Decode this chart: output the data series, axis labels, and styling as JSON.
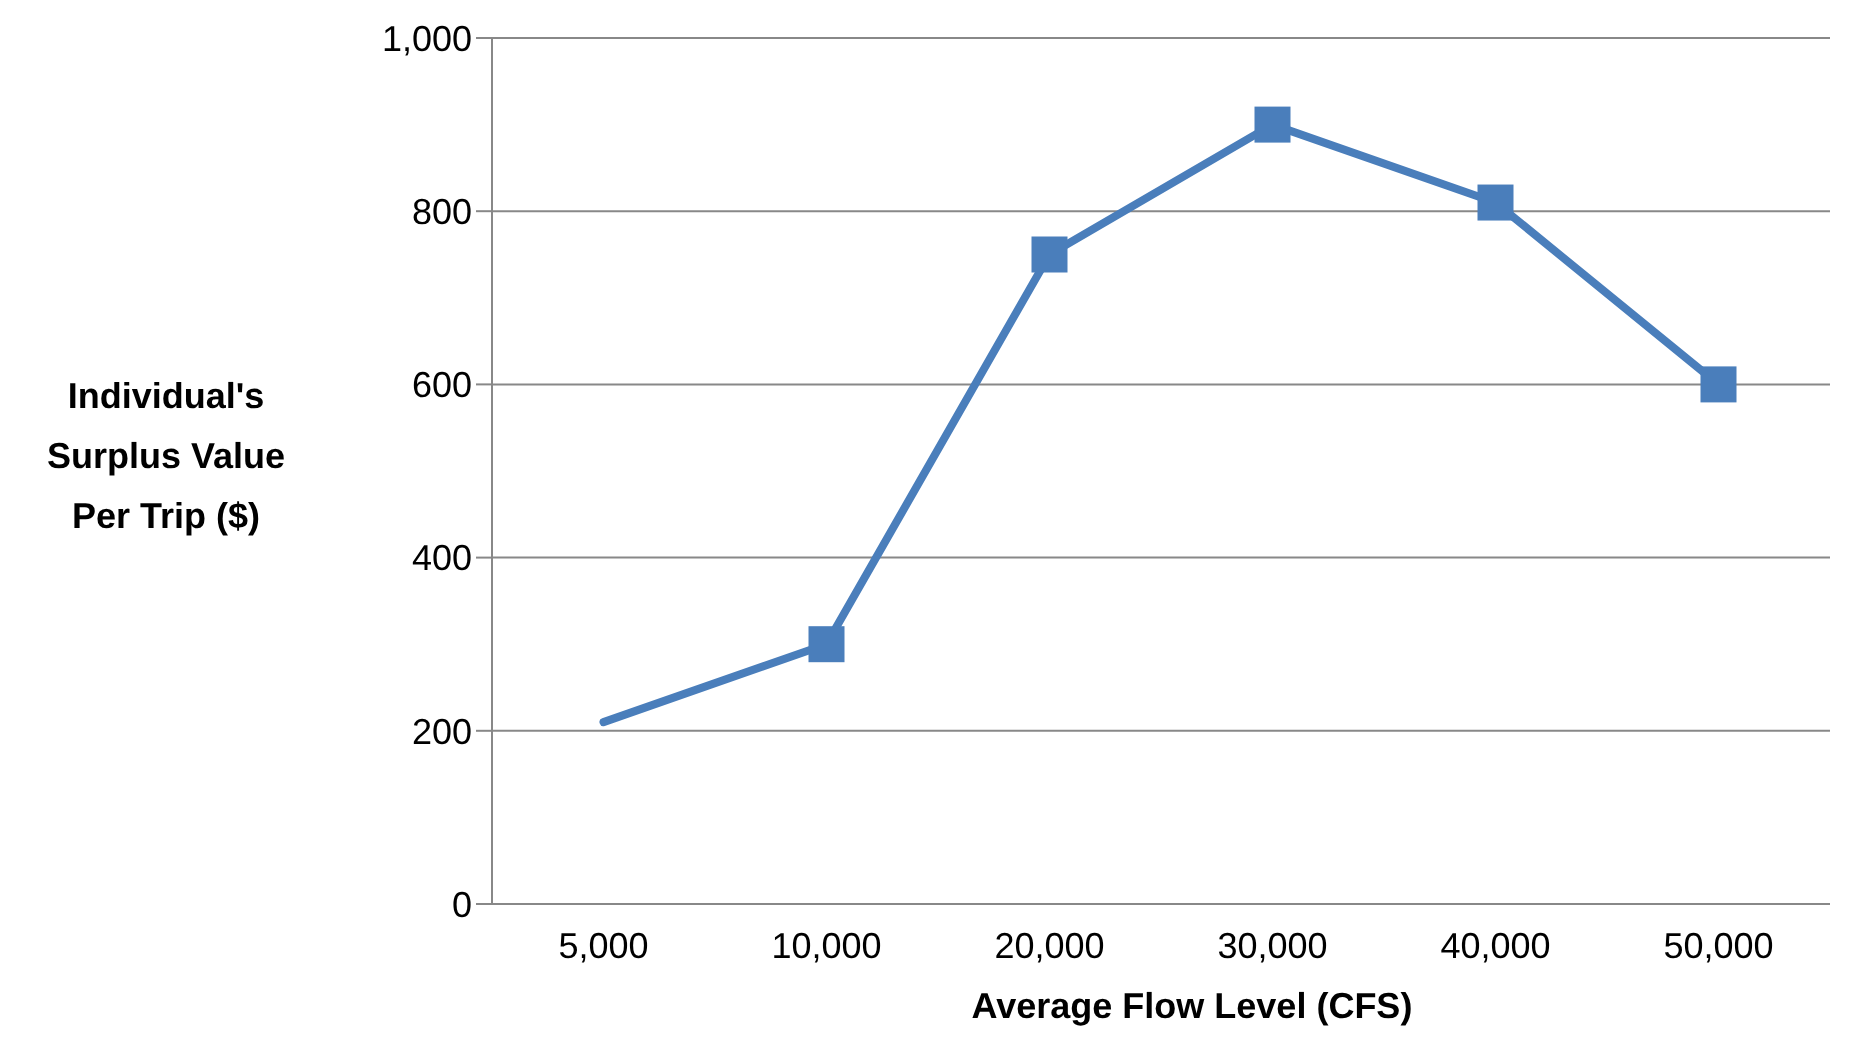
{
  "chart_data": {
    "type": "line",
    "xlabel": "Average Flow Level (CFS)",
    "ylabel": "Individual's Surplus Value Per Trip ($)",
    "categories": [
      "5,000",
      "10,000",
      "20,000",
      "30,000",
      "40,000",
      "50,000"
    ],
    "series": [
      {
        "color": "#4a7ebb",
        "values": [
          210,
          300,
          null,
          null,
          null,
          null
        ]
      },
      {
        "color": "#4a7ebb",
        "values": [
          null,
          300,
          750,
          900,
          810,
          600
        ],
        "marker": "square"
      }
    ],
    "ylim": [
      0,
      1000
    ],
    "yticks": [
      0,
      200,
      400,
      600,
      800,
      {
        "value": 1000,
        "label": "1,000"
      }
    ],
    "grid": "y",
    "legend": false
  }
}
